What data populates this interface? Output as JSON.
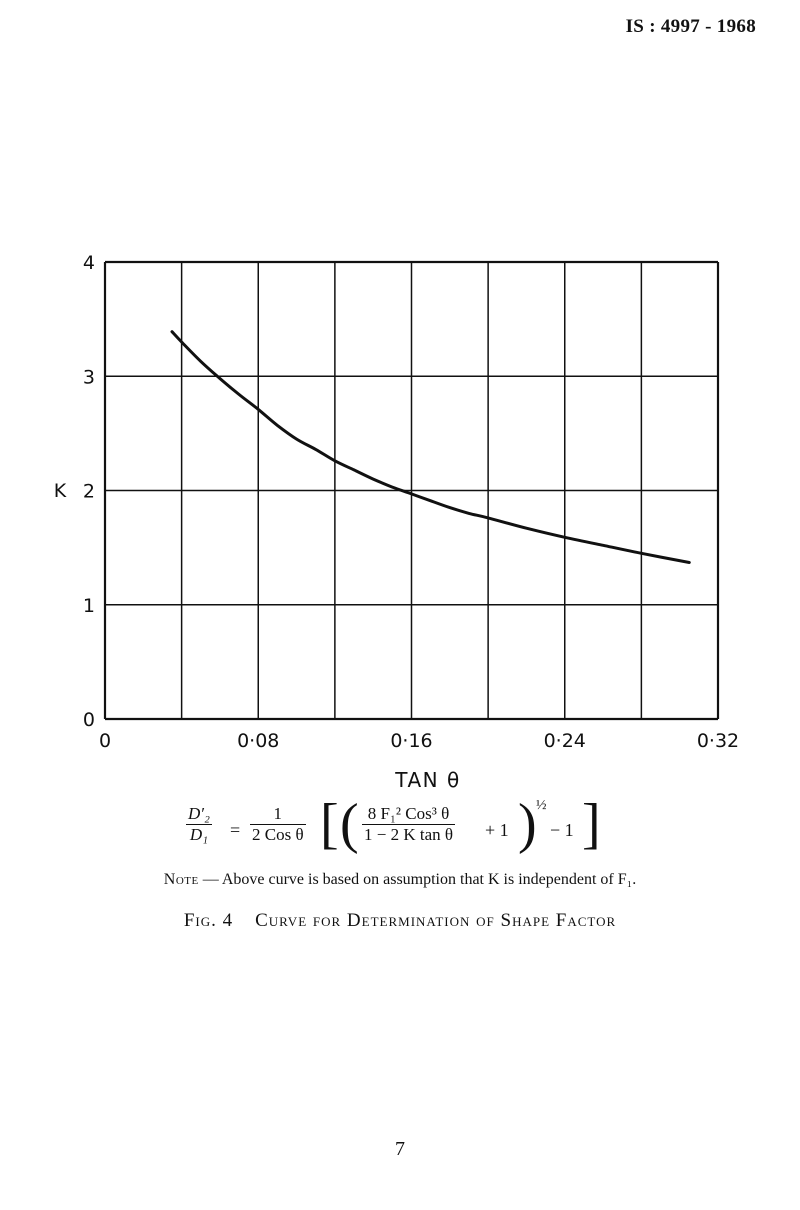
{
  "header": {
    "code": "IS : 4997 - 1968"
  },
  "chart_data": {
    "type": "line",
    "title": "",
    "xlabel": "TAN θ",
    "ylabel": "K",
    "xlim": [
      0,
      0.32
    ],
    "ylim": [
      0,
      4
    ],
    "x_ticks": [
      0,
      0.04,
      0.08,
      0.12,
      0.16,
      0.2,
      0.24,
      0.28,
      0.32
    ],
    "x_tick_labels": [
      "0",
      "",
      "0·08",
      "",
      "0·16",
      "",
      "0·24",
      "",
      "0·32"
    ],
    "y_ticks": [
      0,
      1,
      2,
      3,
      4
    ],
    "y_tick_labels": [
      "0",
      "1",
      "2",
      "3",
      "4"
    ],
    "grid": true,
    "series": [
      {
        "x": [
          0.035,
          0.04,
          0.05,
          0.06,
          0.07,
          0.08,
          0.09,
          0.1,
          0.11,
          0.12,
          0.13,
          0.14,
          0.15,
          0.16,
          0.17,
          0.18,
          0.19,
          0.2,
          0.22,
          0.24,
          0.26,
          0.28,
          0.305
        ],
        "y": [
          3.39,
          3.3,
          3.13,
          2.98,
          2.84,
          2.71,
          2.57,
          2.45,
          2.36,
          2.26,
          2.18,
          2.1,
          2.03,
          1.97,
          1.91,
          1.85,
          1.8,
          1.76,
          1.67,
          1.59,
          1.52,
          1.45,
          1.37
        ]
      }
    ]
  },
  "formula": {
    "lhs_num": "D′₂",
    "lhs_den": "D₁",
    "equals": "=",
    "f1_num": "1",
    "f1_den": "2 Cos θ",
    "f2_num": "8 F₁² Cos³ θ",
    "f2_den": "1 − 2 K tan θ",
    "plus_one": "+ 1",
    "exponent": "½",
    "minus_one": "− 1"
  },
  "note": {
    "prefix": "Note",
    "text": " — Above curve is based on assumption that K is independent of F₁."
  },
  "caption": {
    "fig": "Fig. 4",
    "title": "Curve for Determination of Shape Factor"
  },
  "page_number": "7"
}
